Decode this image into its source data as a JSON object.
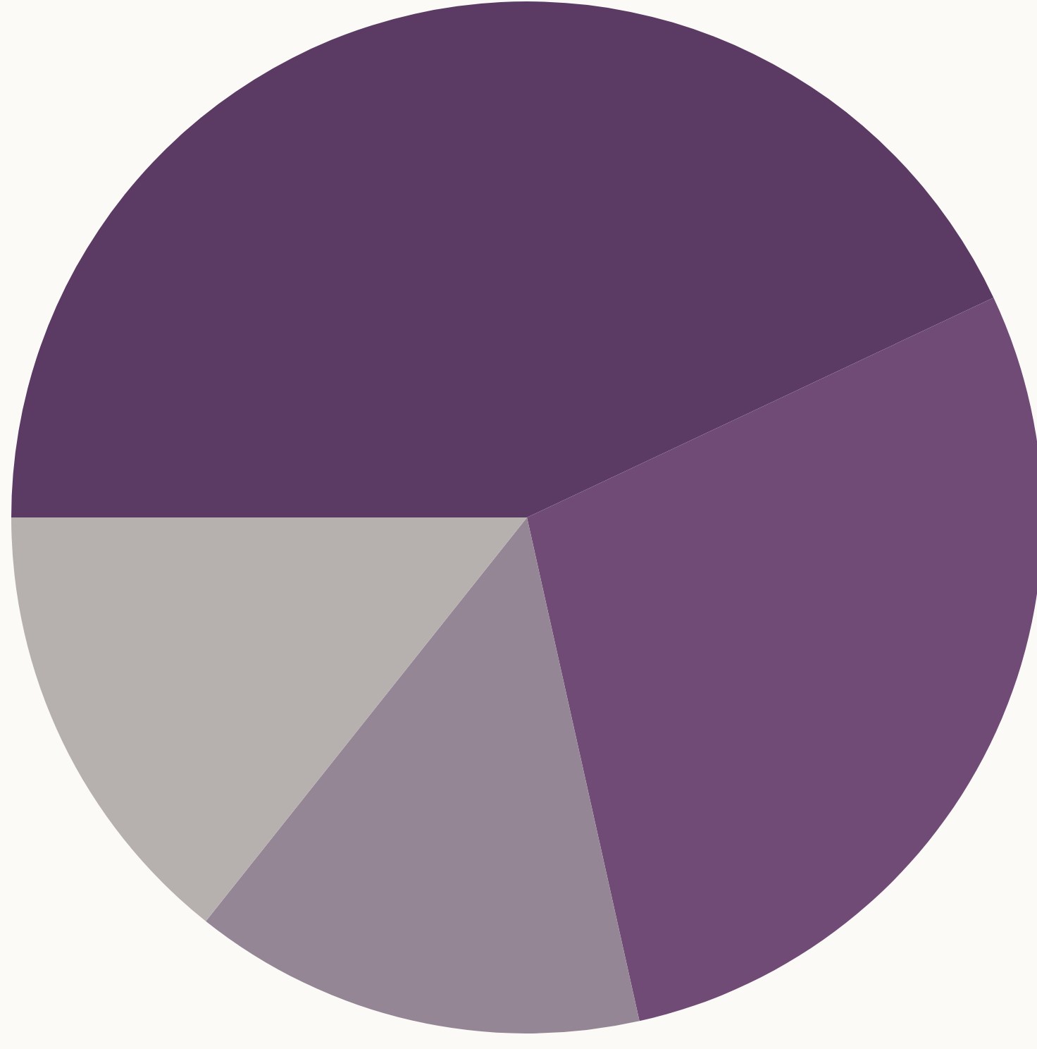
{
  "chart_data": {
    "type": "pie",
    "categories": [
      null,
      null,
      null,
      null
    ],
    "values": [
      43,
      28.5,
      14.2,
      14.3
    ],
    "colors": [
      "#5b3b64",
      "#6f4b76",
      "#958696",
      "#b6b0ae"
    ]
  }
}
